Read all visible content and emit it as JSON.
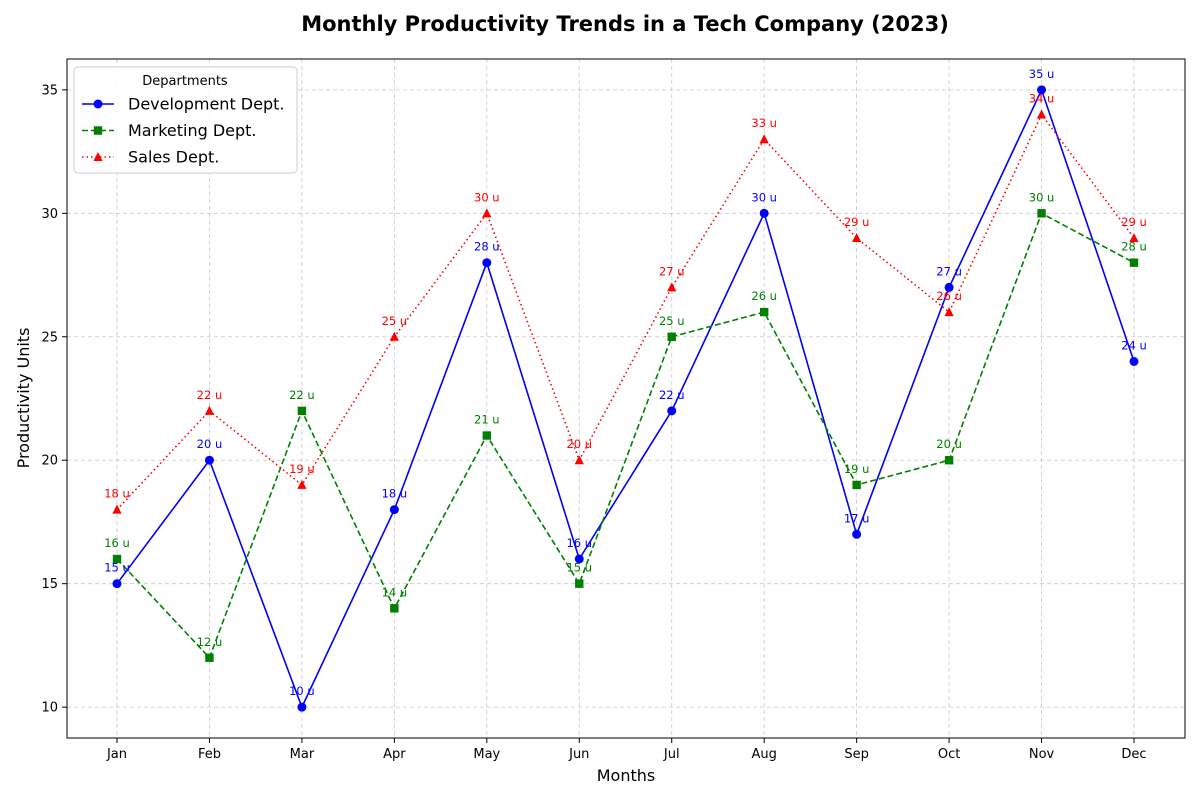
{
  "chart_data": {
    "type": "line",
    "title": "Monthly Productivity Trends in a Tech Company (2023)",
    "xlabel": "Months",
    "ylabel": "Productivity Units",
    "categories": [
      "Jan",
      "Feb",
      "Mar",
      "Apr",
      "May",
      "Jun",
      "Jul",
      "Aug",
      "Sep",
      "Oct",
      "Nov",
      "Dec"
    ],
    "ylim": [
      8.75,
      36.25
    ],
    "yticks": [
      10,
      15,
      20,
      25,
      30,
      35
    ],
    "grid": true,
    "legend": {
      "title": "Departments",
      "placement": "top-left"
    },
    "data_label_suffix": " u",
    "series": [
      {
        "name": "Development Dept.",
        "color": "#0000ff",
        "line_style": "solid",
        "marker": "circle",
        "values": [
          15,
          20,
          10,
          18,
          28,
          16,
          22,
          30,
          17,
          27,
          35,
          24
        ]
      },
      {
        "name": "Marketing Dept.",
        "color": "#008000",
        "line_style": "dashed",
        "marker": "square",
        "values": [
          16,
          12,
          22,
          14,
          21,
          15,
          25,
          26,
          19,
          20,
          30,
          28
        ]
      },
      {
        "name": "Sales Dept.",
        "color": "#ff0000",
        "line_style": "dotted",
        "marker": "triangle",
        "values": [
          18,
          22,
          19,
          25,
          30,
          20,
          27,
          33,
          29,
          26,
          34,
          29
        ]
      }
    ]
  }
}
